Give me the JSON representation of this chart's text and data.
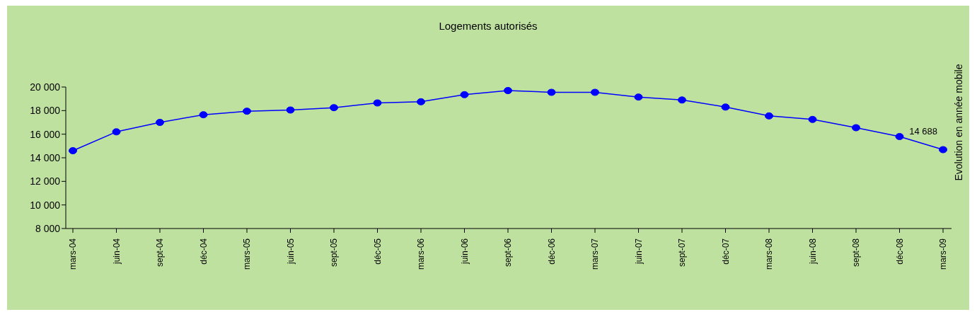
{
  "chart_data": {
    "type": "line",
    "title": "Logements autorisés",
    "y2label": "Evolution en année mobile",
    "categories": [
      "mars-04",
      "juin-04",
      "sept-04",
      "déc-04",
      "mars-05",
      "juin-05",
      "sept-05",
      "déc-05",
      "mars-06",
      "juin-06",
      "sept-06",
      "déc-06",
      "mars-07",
      "juin-07",
      "sept-07",
      "déc-07",
      "mars-08",
      "juin-08",
      "sept-08",
      "déc-08",
      "mars-09"
    ],
    "series": [
      {
        "color": "#0000ff",
        "values": [
          14600,
          16200,
          17000,
          17650,
          17950,
          18050,
          18250,
          18650,
          18750,
          19350,
          19700,
          19550,
          19550,
          19150,
          18900,
          18300,
          17550,
          17250,
          16550,
          15800,
          14688
        ],
        "value_labels": [
          null,
          null,
          null,
          null,
          null,
          null,
          null,
          null,
          null,
          null,
          null,
          null,
          null,
          null,
          null,
          null,
          null,
          null,
          null,
          null,
          "14 688"
        ]
      }
    ],
    "ylim": [
      8000,
      20000
    ],
    "yticks": [
      8000,
      10000,
      12000,
      14000,
      16000,
      18000,
      20000
    ],
    "grid": false,
    "legend": false,
    "marker": "circle",
    "line_style": "solid"
  }
}
